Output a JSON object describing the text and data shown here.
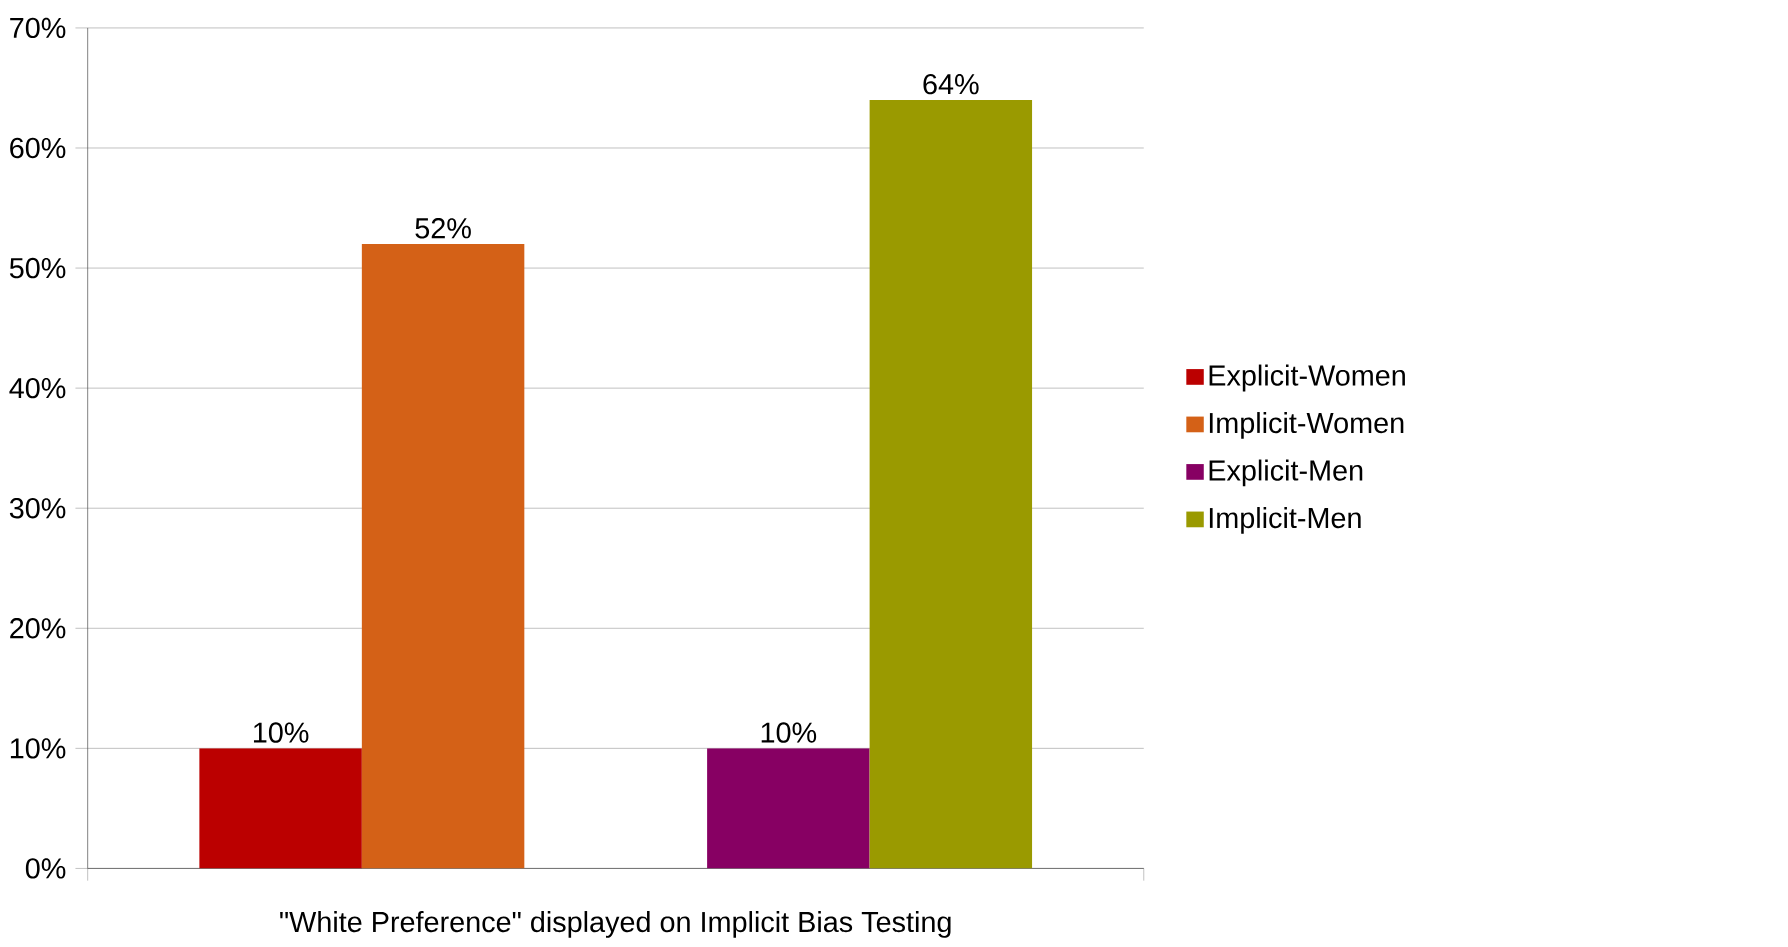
{
  "chart_data": {
    "type": "bar",
    "xlabel": "\"White Preference\" displayed on Implicit Bias Testing",
    "categories": [
      null,
      null
    ],
    "series": [
      {
        "name": "Explicit-Women",
        "color": "#bb0000",
        "values": [
          10,
          null
        ],
        "value_labels": [
          "10%",
          null
        ]
      },
      {
        "name": "Implicit-Women",
        "color": "#d46117",
        "values": [
          52,
          null
        ],
        "value_labels": [
          "52%",
          null
        ]
      },
      {
        "name": "Explicit-Men",
        "color": "#870063",
        "values": [
          null,
          10
        ],
        "value_labels": [
          null,
          "10%"
        ]
      },
      {
        "name": "Implicit-Men",
        "color": "#9a9a00",
        "values": [
          null,
          64
        ],
        "value_labels": [
          null,
          "64%"
        ]
      }
    ],
    "ylim": [
      0,
      70
    ],
    "yticks": [
      {
        "value": 0,
        "label": "0%"
      },
      {
        "value": 10,
        "label": "10%"
      },
      {
        "value": 20,
        "label": "20%"
      },
      {
        "value": 30,
        "label": "30%"
      },
      {
        "value": 40,
        "label": "40%"
      },
      {
        "value": 50,
        "label": "50%"
      },
      {
        "value": 60,
        "label": "60%"
      },
      {
        "value": 70,
        "label": "70%"
      }
    ],
    "grid": "y",
    "legend": "right"
  }
}
